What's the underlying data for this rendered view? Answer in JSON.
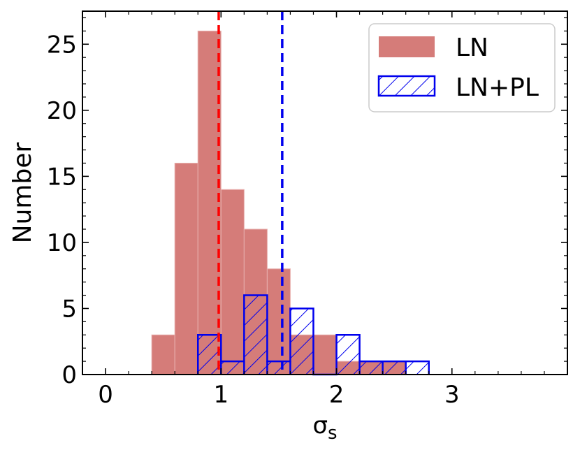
{
  "chart_data": {
    "type": "bar",
    "xlabel_main": "σ",
    "xlabel_sub": "s",
    "ylabel": "Number",
    "xlim": [
      -0.2,
      4.0
    ],
    "ylim": [
      0,
      27.5
    ],
    "xticks": [
      0,
      1,
      2,
      3
    ],
    "xtick_labels": [
      "0",
      "1",
      "2",
      "3"
    ],
    "yticks": [
      0,
      5,
      10,
      15,
      20,
      25
    ],
    "ytick_labels": [
      "0",
      "5",
      "10",
      "15",
      "20",
      "25"
    ],
    "bin_width": 0.2,
    "grid": false,
    "legend_position": "top-right",
    "series": [
      {
        "name": "LN",
        "style": "filled",
        "color": "#d57c79",
        "bins": [
          0.4,
          0.6,
          0.8,
          1.0,
          1.2,
          1.4,
          1.6,
          1.8,
          2.0,
          2.2,
          2.4
        ],
        "values": [
          3,
          16,
          26,
          14,
          11,
          8,
          3,
          3,
          1,
          1,
          1
        ]
      },
      {
        "name": "LN+PL",
        "style": "hatched",
        "color": "#0000ee",
        "bins": [
          0.8,
          1.0,
          1.2,
          1.4,
          1.6,
          1.8,
          2.0,
          2.2,
          2.4,
          2.6
        ],
        "values": [
          3,
          1,
          6,
          1,
          5,
          0,
          3,
          1,
          1,
          1
        ]
      }
    ],
    "vlines": [
      {
        "x": 0.98,
        "color": "#ff0000"
      },
      {
        "x": 1.53,
        "color": "#0000ee"
      }
    ]
  }
}
